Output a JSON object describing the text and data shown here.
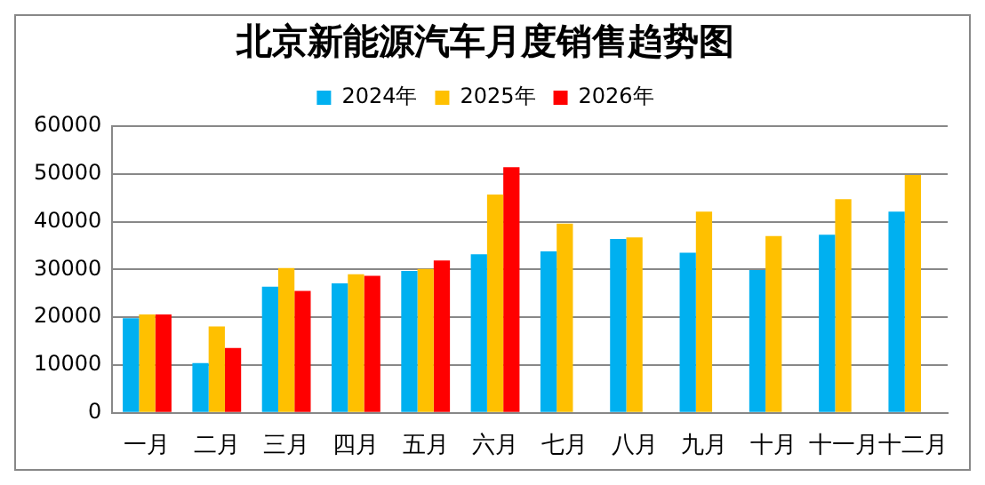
{
  "chart_data": {
    "type": "bar",
    "title": "北京新能源汽车月度销售趋势图",
    "categories": [
      "一月",
      "二月",
      "三月",
      "四月",
      "五月",
      "六月",
      "七月",
      "八月",
      "九月",
      "十月",
      "十一月",
      "十二月"
    ],
    "series": [
      {
        "name": "2024年",
        "color": "#00b0f0",
        "values": [
          19800,
          10400,
          26400,
          27100,
          29700,
          33200,
          33800,
          36400,
          33500,
          29900,
          37300,
          42100
        ]
      },
      {
        "name": "2025年",
        "color": "#ffc000",
        "values": [
          20600,
          18100,
          30300,
          29000,
          30100,
          45700,
          39600,
          36700,
          42100,
          37000,
          44700,
          49800
        ]
      },
      {
        "name": "2026年",
        "color": "#ff0000",
        "values": [
          20600,
          13600,
          25500,
          28700,
          31900,
          51400,
          null,
          null,
          null,
          null,
          null,
          null
        ]
      }
    ],
    "ylim": [
      0,
      60000
    ],
    "yticks": [
      0,
      10000,
      20000,
      30000,
      40000,
      50000,
      60000
    ],
    "grid": "y",
    "legend": "top"
  }
}
